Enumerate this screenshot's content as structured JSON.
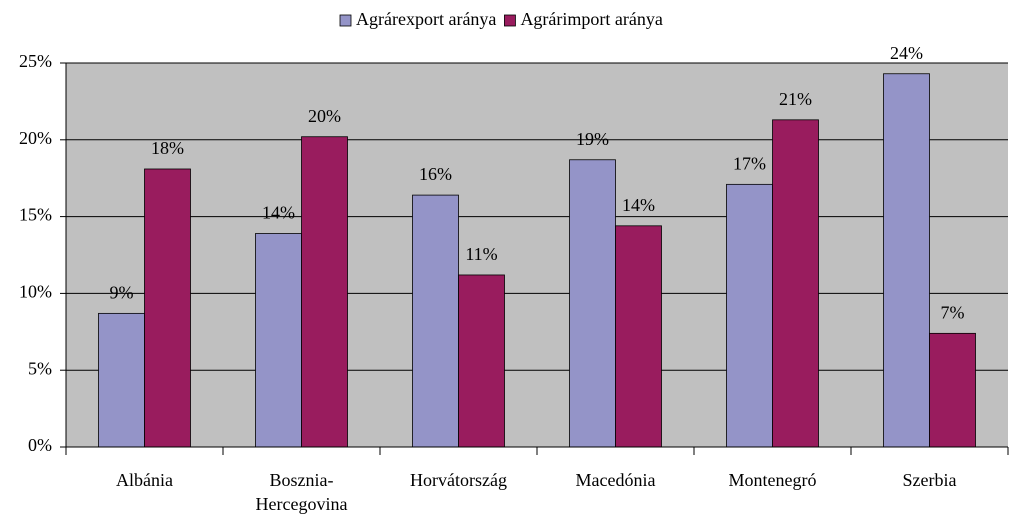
{
  "chart_data": {
    "type": "bar",
    "categories": [
      "Albánia",
      "Bosznia-\nHercegovina",
      "Horvátország",
      "Macedónia",
      "Montenegró",
      "Szerbia"
    ],
    "series": [
      {
        "name": "Agrárexport aránya",
        "color": "#9494c8",
        "values": [
          8.7,
          13.9,
          16.4,
          18.7,
          17.1,
          24.3
        ],
        "value_labels": [
          "9%",
          "14%",
          "16%",
          "19%",
          "17%",
          "24%"
        ]
      },
      {
        "name": "Agrárimport aránya",
        "color": "#991c5e",
        "values": [
          18.1,
          20.2,
          11.2,
          14.4,
          21.3,
          7.4
        ],
        "value_labels": [
          "18%",
          "20%",
          "11%",
          "14%",
          "21%",
          "7%"
        ]
      }
    ],
    "ylim": [
      0,
      25
    ],
    "yticks": [
      {
        "value": 0,
        "label": "0%"
      },
      {
        "value": 5,
        "label": "5%"
      },
      {
        "value": 10,
        "label": "10%"
      },
      {
        "value": 15,
        "label": "15%"
      },
      {
        "value": 20,
        "label": "20%"
      },
      {
        "value": 25,
        "label": "25%"
      }
    ],
    "grid": true,
    "legend": "top",
    "background": "#c0c0c0"
  }
}
